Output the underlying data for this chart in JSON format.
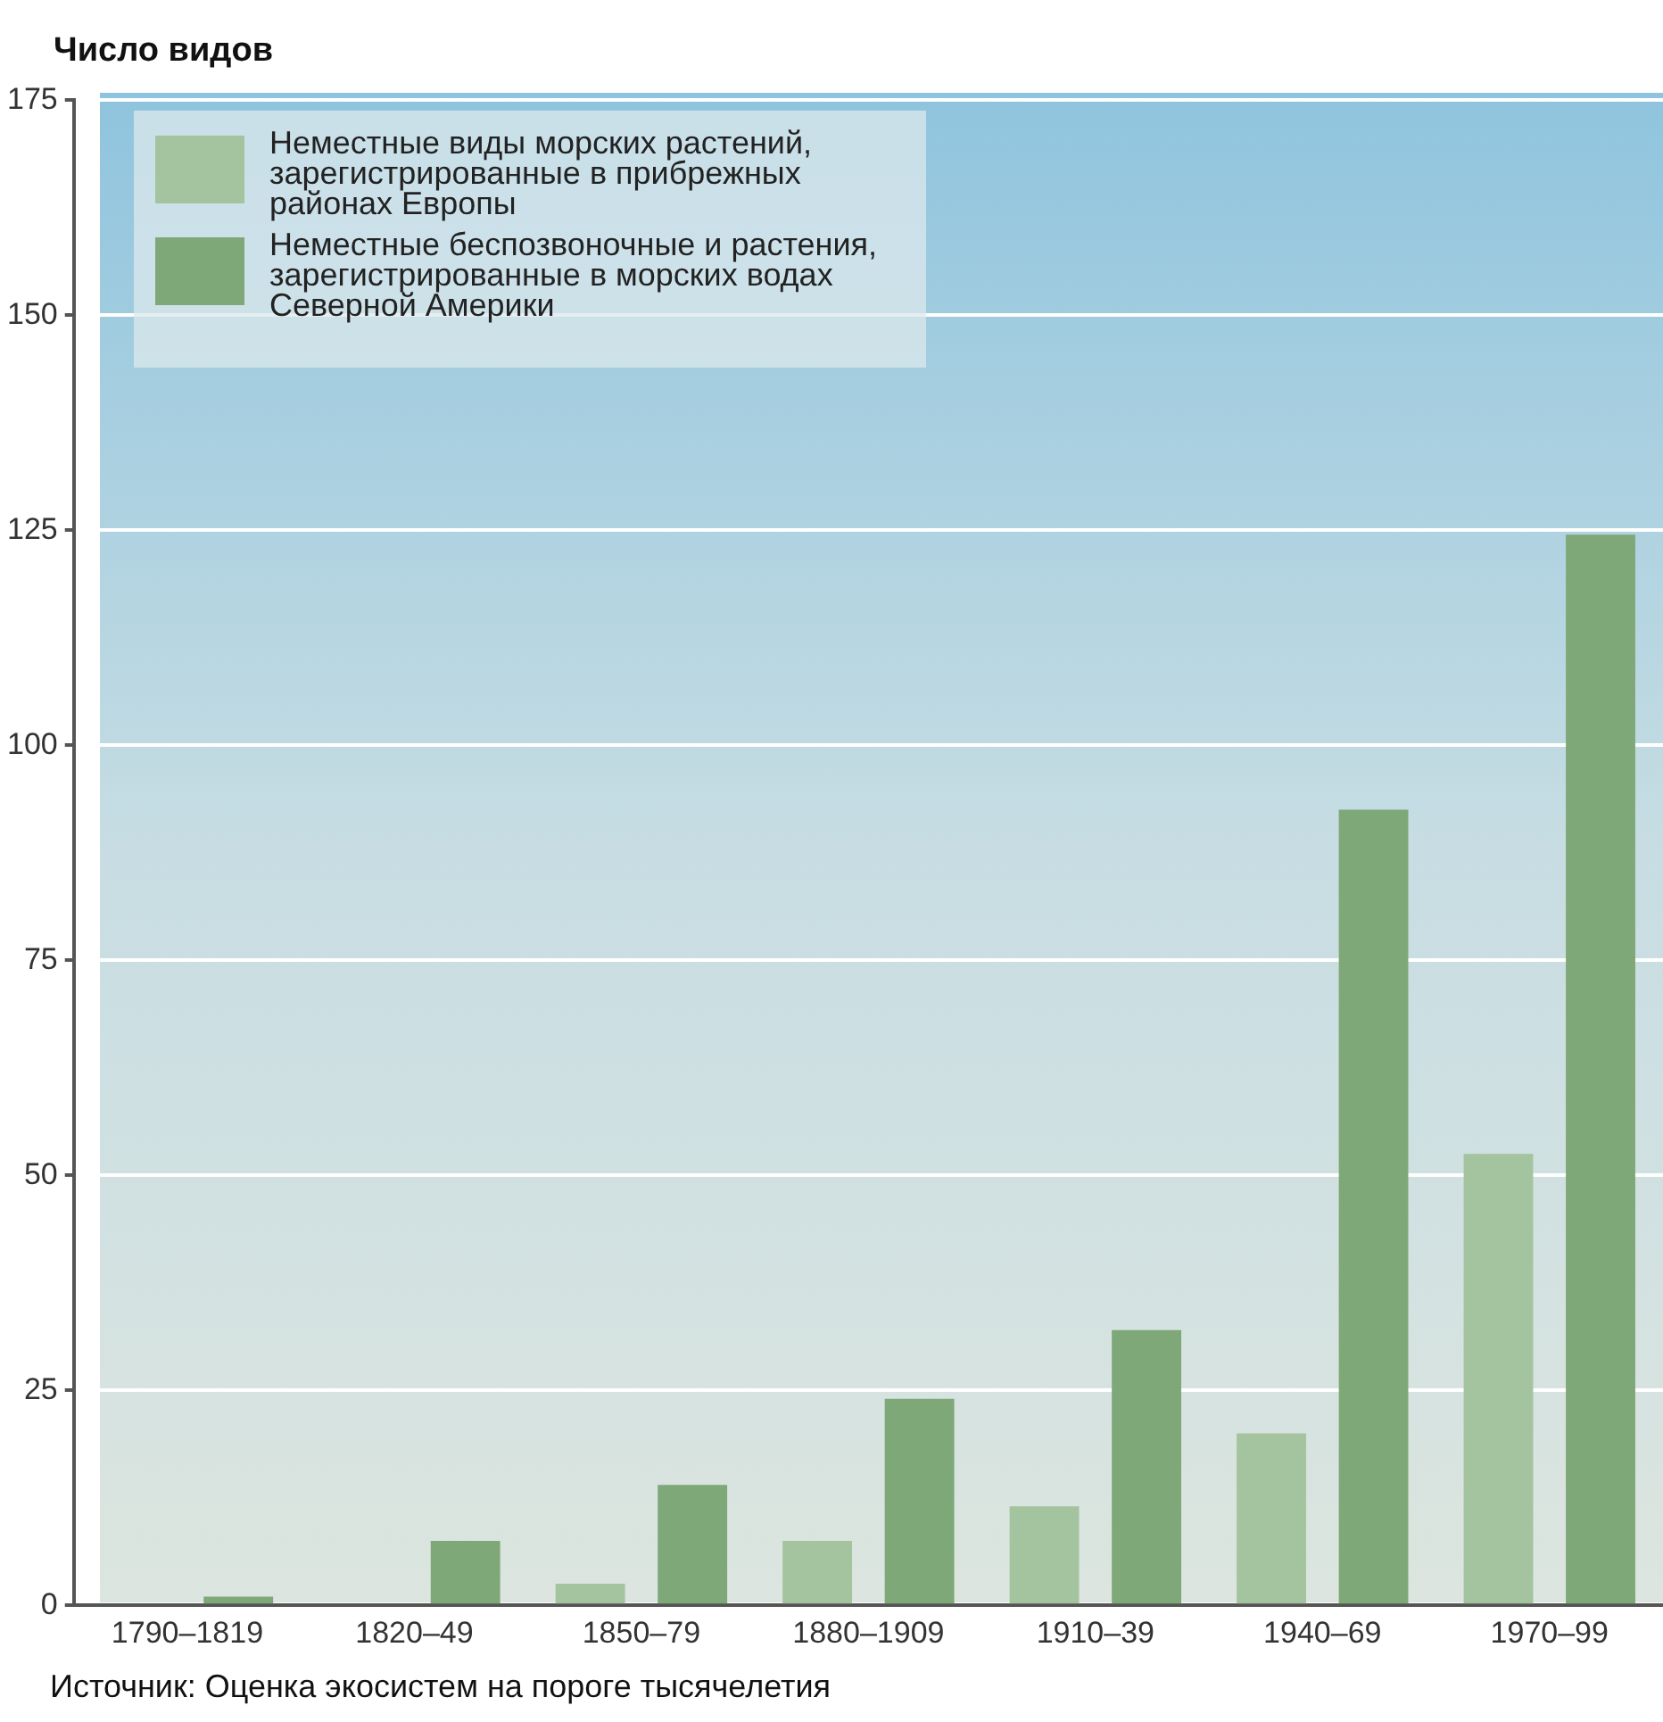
{
  "chart_data": {
    "type": "bar",
    "ylabel": "Число видов",
    "categories": [
      "1790–1819",
      "1820–49",
      "1850–79",
      "1880–1909",
      "1910–39",
      "1940–69",
      "1970–99"
    ],
    "series": [
      {
        "name": "Неместные виды морских растений, зарегистрированные в прибрежных районах Европы",
        "color": "#a3c49f",
        "values": [
          null,
          null,
          2.5,
          7.5,
          11.5,
          20,
          52.5
        ]
      },
      {
        "name": "Неместные беспозвоночные и растения, зарегистрированные в морских водах Северной Америки",
        "color": "#7fa878",
        "values": [
          1,
          7.5,
          14,
          24,
          32,
          92.5,
          124.5
        ]
      }
    ],
    "ylim": [
      0,
      175
    ],
    "yticks": [
      0,
      25,
      50,
      75,
      100,
      125,
      150,
      175
    ],
    "grid": "y",
    "legend": "top left",
    "annotations": [
      "Источник: Оценка экосистем на пороге тысячелетия"
    ]
  }
}
